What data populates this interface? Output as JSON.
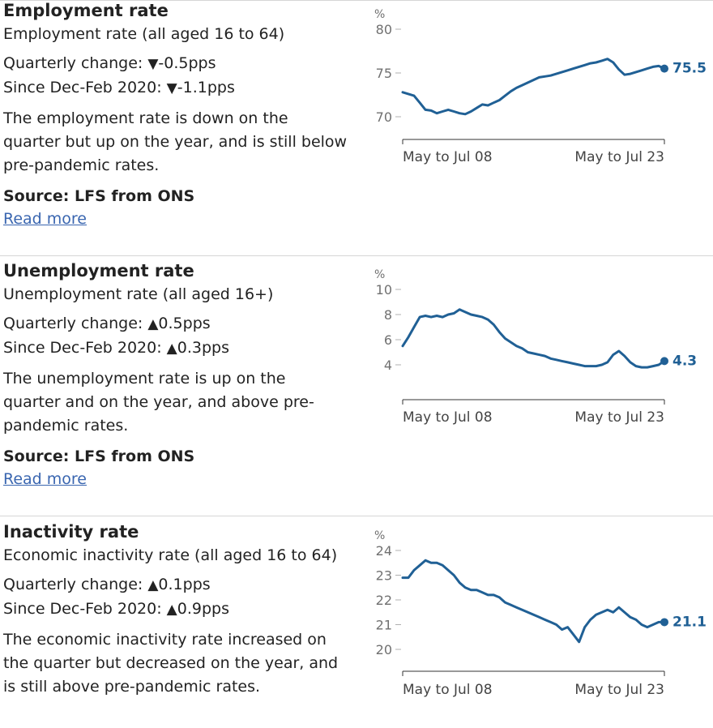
{
  "sections": [
    {
      "title": "Employment rate",
      "subtitle": "Employment rate (all aged 16 to 64)",
      "quarterly_label": "Quarterly change:",
      "quarterly_arrow": "▼",
      "quarterly_value": "-0.5pps",
      "since_label": "Since Dec-Feb 2020:",
      "since_arrow": "▼",
      "since_value": "-1.1pps",
      "description": "The employment rate is down on the quarter but up on the year, and is still below pre-pandemic rates.",
      "source": "Source: LFS from ONS",
      "read_more": "Read more"
    },
    {
      "title": "Unemployment rate",
      "subtitle": "Unemployment rate (all aged 16+)",
      "quarterly_label": "Quarterly change:",
      "quarterly_arrow": "▲",
      "quarterly_value": "0.5pps",
      "since_label": "Since Dec-Feb 2020:",
      "since_arrow": "▲",
      "since_value": "0.3pps",
      "description": "The unemployment rate is up on the quarter and on the year, and above pre-pandemic rates.",
      "source": "Source: LFS from ONS",
      "read_more": "Read more"
    },
    {
      "title": "Inactivity rate",
      "subtitle": "Economic inactivity rate (all aged 16 to 64)",
      "quarterly_label": "Quarterly change:",
      "quarterly_arrow": "▲",
      "quarterly_value": "0.1pps",
      "since_label": "Since Dec-Feb 2020:",
      "since_arrow": "▲",
      "since_value": "0.9pps",
      "description": "The economic inactivity rate increased on the quarter but decreased on the year, and is still above pre-pandemic rates."
    }
  ],
  "colors": {
    "line": "#206095",
    "axis": "#707070",
    "link": "#3a66b0",
    "divider": "#d6d6d6"
  },
  "chart_data": [
    {
      "type": "line",
      "title": "",
      "ylabel": "%",
      "ylim": [
        70,
        80
      ],
      "yticks": [
        "80",
        "75",
        "70"
      ],
      "x_start": "May to Jul 08",
      "x_end": "May to Jul 23",
      "end_label": "75.5",
      "values": [
        72.8,
        72.6,
        72.4,
        71.6,
        70.8,
        70.7,
        70.4,
        70.6,
        70.8,
        70.6,
        70.4,
        70.3,
        70.6,
        71.0,
        71.4,
        71.3,
        71.6,
        71.9,
        72.4,
        72.9,
        73.3,
        73.6,
        73.9,
        74.2,
        74.5,
        74.6,
        74.7,
        74.9,
        75.1,
        75.3,
        75.5,
        75.7,
        75.9,
        76.1,
        76.2,
        76.4,
        76.6,
        76.2,
        75.4,
        74.8,
        74.9,
        75.1,
        75.3,
        75.5,
        75.7,
        75.8,
        75.5
      ]
    },
    {
      "type": "line",
      "title": "",
      "ylabel": "%",
      "ylim": [
        4,
        10
      ],
      "yticks": [
        "10",
        "8",
        "6",
        "4"
      ],
      "x_start": "May to Jul 08",
      "x_end": "May to Jul 23",
      "end_label": "4.3",
      "values": [
        5.5,
        6.2,
        7.0,
        7.8,
        7.9,
        7.8,
        7.9,
        7.8,
        8.0,
        8.1,
        8.4,
        8.2,
        8.0,
        7.9,
        7.8,
        7.6,
        7.2,
        6.6,
        6.1,
        5.8,
        5.5,
        5.3,
        5.0,
        4.9,
        4.8,
        4.7,
        4.5,
        4.4,
        4.3,
        4.2,
        4.1,
        4.0,
        3.9,
        3.9,
        3.9,
        4.0,
        4.2,
        4.8,
        5.1,
        4.7,
        4.2,
        3.9,
        3.8,
        3.8,
        3.9,
        4.0,
        4.3
      ]
    },
    {
      "type": "line",
      "title": "",
      "ylabel": "%",
      "ylim": [
        20,
        24
      ],
      "yticks": [
        "24",
        "23",
        "22",
        "21",
        "20"
      ],
      "x_start": "May to Jul 08",
      "x_end": "May to Jul 23",
      "end_label": "21.1",
      "values": [
        22.9,
        22.9,
        23.2,
        23.4,
        23.6,
        23.5,
        23.5,
        23.4,
        23.2,
        23.0,
        22.7,
        22.5,
        22.4,
        22.4,
        22.3,
        22.2,
        22.2,
        22.1,
        21.9,
        21.8,
        21.7,
        21.6,
        21.5,
        21.4,
        21.3,
        21.2,
        21.1,
        21.0,
        20.8,
        20.9,
        20.6,
        20.3,
        20.9,
        21.2,
        21.4,
        21.5,
        21.6,
        21.5,
        21.7,
        21.5,
        21.3,
        21.2,
        21.0,
        20.9,
        21.0,
        21.1,
        21.1
      ]
    }
  ]
}
